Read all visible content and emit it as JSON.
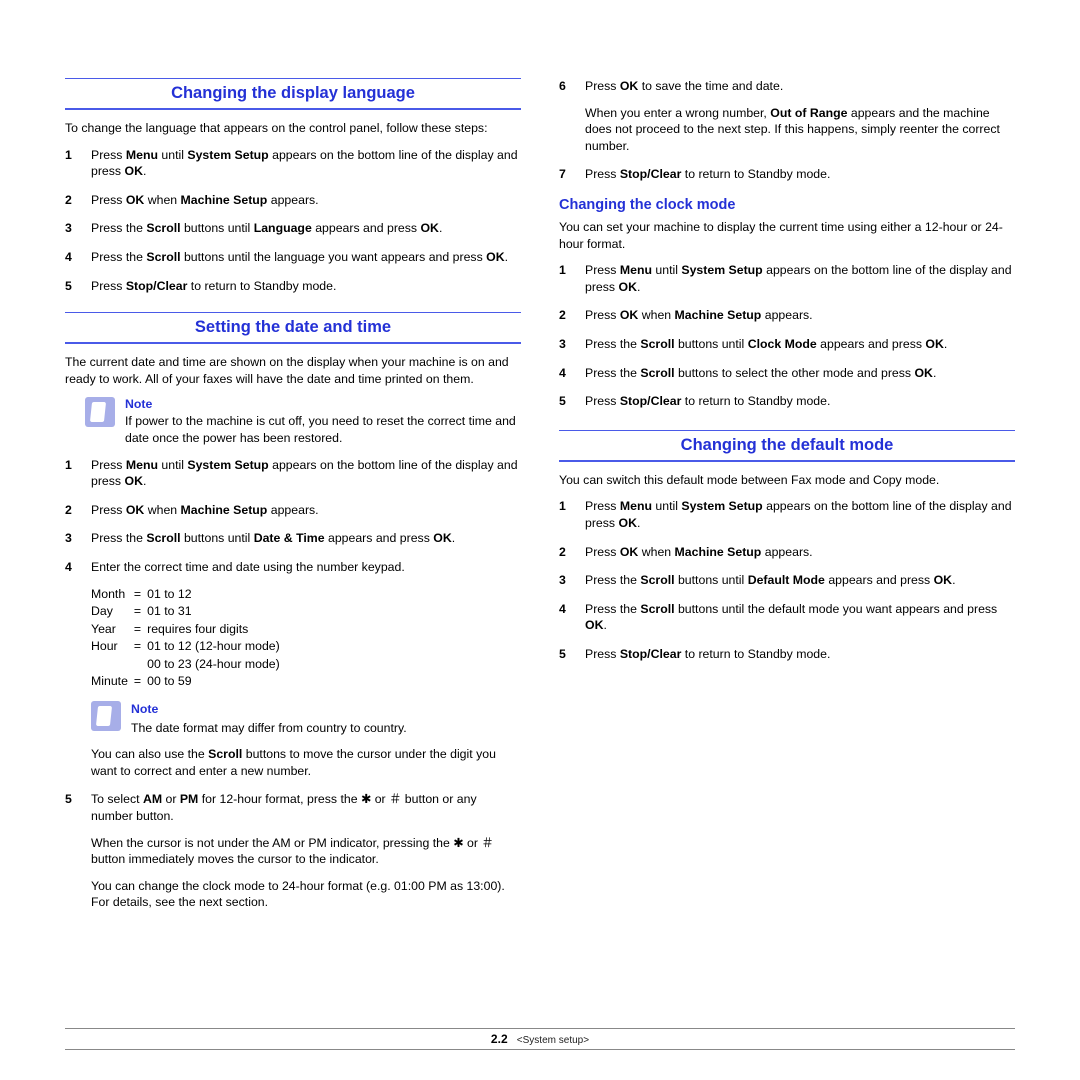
{
  "colors": {
    "heading": "#2431d6",
    "rule": "#4a5ae8",
    "note_icon_bg": "#a7aee8",
    "text": "#000000",
    "background": "#ffffff"
  },
  "typography": {
    "body_fontsize_pt": 9,
    "heading_fontsize_pt": 12,
    "subhead_fontsize_pt": 11
  },
  "left": {
    "sec1": {
      "title": "Changing the display language",
      "intro": "To change the language that appears on the control panel, follow these steps:",
      "steps": [
        {
          "n": "1",
          "parts": [
            "Press ",
            {
              "b": "Menu"
            },
            " until ",
            {
              "b": "System Setup"
            },
            " appears on the bottom line of the display and press ",
            {
              "b": "OK"
            },
            "."
          ]
        },
        {
          "n": "2",
          "parts": [
            "Press ",
            {
              "b": "OK"
            },
            " when ",
            {
              "b": "Machine Setup"
            },
            " appears."
          ]
        },
        {
          "n": "3",
          "parts": [
            "Press the ",
            {
              "b": "Scroll"
            },
            " buttons until ",
            {
              "b": "Language"
            },
            " appears and press ",
            {
              "b": "OK"
            },
            "."
          ]
        },
        {
          "n": "4",
          "parts": [
            "Press the ",
            {
              "b": "Scroll"
            },
            " buttons until the language you want appears and press ",
            {
              "b": "OK"
            },
            "."
          ]
        },
        {
          "n": "5",
          "parts": [
            "Press ",
            {
              "b": "Stop/Clear"
            },
            " to return to Standby mode."
          ]
        }
      ]
    },
    "sec2": {
      "title": "Setting the date and time",
      "intro": "The current date and time are shown on the display when your machine is on and ready to work. All of your faxes will have the date and time printed on them.",
      "note1": {
        "title": "Note",
        "text": "If power to the machine is cut off, you need to reset the correct time and date once the power has been restored."
      },
      "steps_a": [
        {
          "n": "1",
          "parts": [
            "Press ",
            {
              "b": "Menu"
            },
            " until ",
            {
              "b": "System Setup"
            },
            " appears on the bottom line of the display and press ",
            {
              "b": "OK"
            },
            "."
          ]
        },
        {
          "n": "2",
          "parts": [
            "Press ",
            {
              "b": "OK"
            },
            " when ",
            {
              "b": "Machine Setup"
            },
            " appears."
          ]
        },
        {
          "n": "3",
          "parts": [
            "Press the ",
            {
              "b": "Scroll"
            },
            " buttons until ",
            {
              "b": "Date & Time"
            },
            " appears and press ",
            {
              "b": "OK"
            },
            "."
          ]
        }
      ],
      "step4_lead": {
        "n": "4",
        "text": "Enter the correct time and date using the number keypad."
      },
      "table": [
        [
          "Month",
          "=",
          "01 to 12"
        ],
        [
          "Day",
          "=",
          "01 to 31"
        ],
        [
          "Year",
          "=",
          "requires four digits"
        ],
        [
          "Hour",
          "=",
          "01 to 12 (12-hour mode)"
        ],
        [
          "",
          "",
          "00 to 23 (24-hour mode)"
        ],
        [
          "Minute",
          "=",
          "00 to 59"
        ]
      ],
      "note2": {
        "title": "Note",
        "text": "The date format may differ from country to country."
      },
      "step4_tail": [
        "You can also use the ",
        {
          "b": "Scroll"
        },
        " buttons to move the cursor under the digit you want to correct and enter a new number."
      ],
      "step5": {
        "n": "5",
        "p1": [
          "To select ",
          {
            "b": "AM"
          },
          " or ",
          {
            "b": "PM"
          },
          " for 12-hour format, press the ",
          {
            "sym": "✱"
          },
          " or ",
          {
            "sym": "＃"
          },
          " button or any number button."
        ],
        "p2": [
          "When the cursor is not under the AM or PM indicator, pressing the ",
          {
            "sym": "✱"
          },
          " or ",
          {
            "sym": "＃"
          },
          " button immediately moves the cursor to the indicator."
        ],
        "p3": "You can change the clock mode to 24-hour format (e.g. 01:00 PM as 13:00). For details, see the next section."
      }
    }
  },
  "right": {
    "cont_steps": [
      {
        "n": "6",
        "p1": [
          "Press ",
          {
            "b": "OK"
          },
          " to save the time and date."
        ],
        "p2": [
          "When you enter a wrong number, ",
          {
            "b": "Out of Range"
          },
          " appears and the machine does not proceed to the next step. If this happens, simply reenter the correct number."
        ]
      },
      {
        "n": "7",
        "p1": [
          "Press ",
          {
            "b": "Stop/Clear"
          },
          " to return to Standby mode."
        ]
      }
    ],
    "sec3": {
      "title": "Changing the clock mode",
      "intro": "You can set your machine to display the current time using either a 12-hour or 24-hour format.",
      "steps": [
        {
          "n": "1",
          "parts": [
            "Press ",
            {
              "b": "Menu"
            },
            " until ",
            {
              "b": "System Setup"
            },
            " appears on the bottom line of the display and press ",
            {
              "b": "OK"
            },
            "."
          ]
        },
        {
          "n": "2",
          "parts": [
            "Press ",
            {
              "b": "OK"
            },
            " when ",
            {
              "b": "Machine Setup"
            },
            " appears."
          ]
        },
        {
          "n": "3",
          "parts": [
            "Press the ",
            {
              "b": "Scroll"
            },
            " buttons until ",
            {
              "b": "Clock Mode"
            },
            " appears and press ",
            {
              "b": "OK"
            },
            "."
          ]
        },
        {
          "n": "4",
          "parts": [
            "Press the ",
            {
              "b": "Scroll"
            },
            " buttons to select the other mode and press ",
            {
              "b": "OK"
            },
            "."
          ]
        },
        {
          "n": "5",
          "parts": [
            "Press ",
            {
              "b": "Stop/Clear"
            },
            " to return to Standby mode."
          ]
        }
      ]
    },
    "sec4": {
      "title": "Changing the default mode",
      "intro": "You can switch this default mode between Fax mode and Copy mode.",
      "steps": [
        {
          "n": "1",
          "parts": [
            "Press ",
            {
              "b": "Menu"
            },
            " until ",
            {
              "b": "System Setup"
            },
            " appears on the bottom line of the display and press ",
            {
              "b": "OK"
            },
            "."
          ]
        },
        {
          "n": "2",
          "parts": [
            "Press ",
            {
              "b": "OK"
            },
            " when ",
            {
              "b": "Machine Setup"
            },
            " appears."
          ]
        },
        {
          "n": "3",
          "parts": [
            "Press the ",
            {
              "b": "Scroll"
            },
            " buttons until ",
            {
              "b": "Default Mode"
            },
            " appears and press ",
            {
              "b": "OK"
            },
            "."
          ]
        },
        {
          "n": "4",
          "parts": [
            "Press the ",
            {
              "b": "Scroll"
            },
            " buttons until the default mode you want appears and press ",
            {
              "b": "OK"
            },
            "."
          ]
        },
        {
          "n": "5",
          "parts": [
            "Press ",
            {
              "b": "Stop/Clear"
            },
            " to return to Standby mode."
          ]
        }
      ]
    }
  },
  "footer": {
    "page_num": "2",
    "page_sub": ".2",
    "label": "<System setup>"
  }
}
